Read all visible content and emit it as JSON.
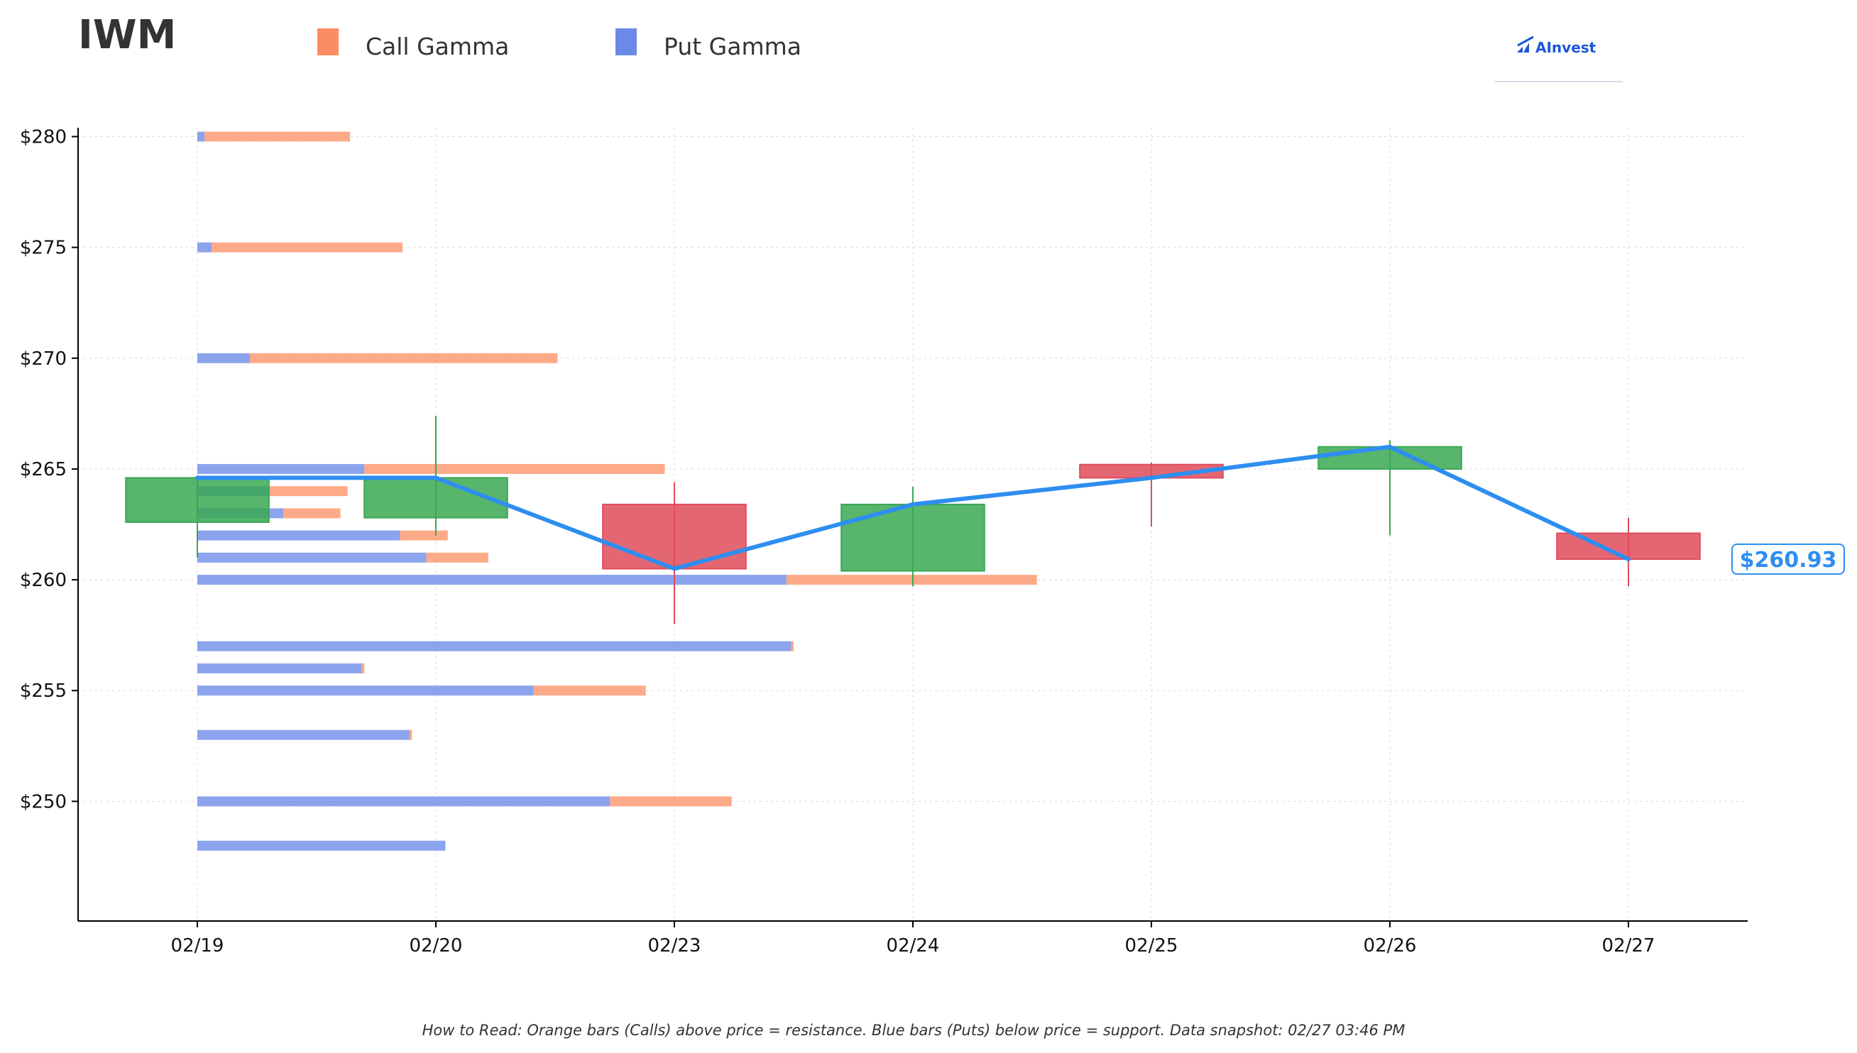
{
  "ticker": "IWM",
  "legend": [
    {
      "label": "Call Gamma",
      "color": "#fc8d62"
    },
    {
      "label": "Put Gamma",
      "color": "#6b8ae8"
    }
  ],
  "brand": {
    "name": "AInvest",
    "icon": "ainvest-logo-icon",
    "color": "#1a56db"
  },
  "footer_note": "How to Read: Orange bars (Calls) above price = resistance. Blue bars (Puts) below price = support. Data snapshot: 02/27 03:46 PM",
  "current_price": {
    "label": "$260.93",
    "value": 260.93,
    "color": "#2e8ef0"
  },
  "chart_data": {
    "type": "candlestick",
    "x_tick_labels": [
      "02/19",
      "02/20",
      "02/23",
      "02/24",
      "02/25",
      "02/26",
      "02/27"
    ],
    "y_tick_labels": [
      "$250",
      "$255",
      "$260",
      "$265",
      "$270",
      "$275",
      "$280"
    ],
    "y_ticks": [
      250,
      255,
      260,
      265,
      270,
      275,
      280
    ],
    "ylim": [
      244.6,
      280.4
    ],
    "xlim": [
      -0.5,
      6.5
    ],
    "grid": true,
    "legend_position": "top",
    "colors": {
      "up": "#3aa852",
      "down": "#e04b5a",
      "close_line": "#2e8ef0",
      "call": "#fc8d62",
      "put": "#6b8ae8"
    },
    "candles": [
      {
        "date": "02/19",
        "open": 262.6,
        "high": 264.6,
        "low": 261.0,
        "close": 264.6
      },
      {
        "date": "02/20",
        "open": 262.8,
        "high": 267.4,
        "low": 262.0,
        "close": 264.6
      },
      {
        "date": "02/23",
        "open": 263.4,
        "high": 264.4,
        "low": 258.0,
        "close": 260.5
      },
      {
        "date": "02/24",
        "open": 260.4,
        "high": 264.2,
        "low": 259.7,
        "close": 263.4
      },
      {
        "date": "02/25",
        "open": 265.2,
        "high": 265.3,
        "low": 262.4,
        "close": 264.6
      },
      {
        "date": "02/26",
        "open": 265.0,
        "high": 266.3,
        "low": 262.0,
        "close": 266.0
      },
      {
        "date": "02/27",
        "open": 262.1,
        "high": 262.8,
        "low": 259.7,
        "close": 260.93
      }
    ],
    "gamma_strikes": [
      {
        "strike": 280,
        "put": 0.03,
        "call": 0.61
      },
      {
        "strike": 275,
        "put": 0.06,
        "call": 0.8
      },
      {
        "strike": 270,
        "put": 0.22,
        "call": 1.29
      },
      {
        "strike": 265,
        "put": 0.7,
        "call": 1.26
      },
      {
        "strike": 264,
        "put": 0.3,
        "call": 0.33
      },
      {
        "strike": 263,
        "put": 0.36,
        "call": 0.24
      },
      {
        "strike": 262,
        "put": 0.85,
        "call": 0.2
      },
      {
        "strike": 261,
        "put": 0.96,
        "call": 0.26
      },
      {
        "strike": 260,
        "put": 2.47,
        "call": 1.05
      },
      {
        "strike": 257,
        "put": 2.49,
        "call": 0.01
      },
      {
        "strike": 256,
        "put": 0.69,
        "call": 0.01
      },
      {
        "strike": 255,
        "put": 1.41,
        "call": 0.47
      },
      {
        "strike": 253,
        "put": 0.89,
        "call": 0.01
      },
      {
        "strike": 250,
        "put": 1.73,
        "call": 0.51
      },
      {
        "strike": 248,
        "put": 1.04,
        "call": 0.0
      }
    ]
  }
}
